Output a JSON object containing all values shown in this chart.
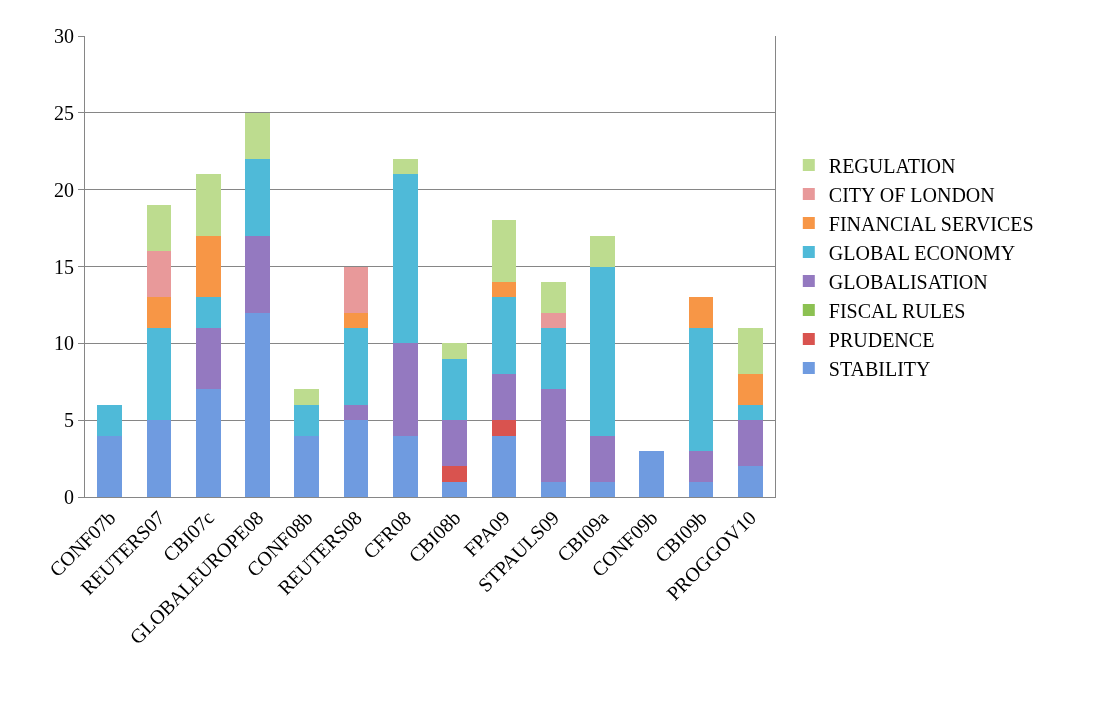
{
  "chart_data": {
    "type": "bar",
    "stacked": true,
    "categories": [
      "CONF07b",
      "REUTERS07",
      "CBI07c",
      "GLOBALEUROPE08",
      "CONF08b",
      "REUTERS08",
      "CFR08",
      "CBI08b",
      "FPA09",
      "STPAULS09",
      "CBI09a",
      "CONF09b",
      "CBI09b",
      "PROGGOV10"
    ],
    "series": [
      {
        "name": "STABILITY",
        "color": "#6f9be0",
        "values": [
          4,
          5,
          7,
          12,
          4,
          5,
          4,
          1,
          4,
          1,
          1,
          3,
          1,
          2
        ]
      },
      {
        "name": "PRUDENCE",
        "color": "#d9534f",
        "values": [
          0,
          0,
          0,
          0,
          0,
          0,
          0,
          1,
          1,
          0,
          0,
          0,
          0,
          0
        ]
      },
      {
        "name": "FISCAL RULES",
        "color": "#8cc152",
        "values": [
          0,
          0,
          0,
          0,
          0,
          0,
          0,
          0,
          0,
          0,
          0,
          0,
          0,
          0
        ]
      },
      {
        "name": "GLOBALISATION",
        "color": "#9479c0",
        "values": [
          0,
          0,
          4,
          5,
          0,
          1,
          6,
          3,
          3,
          6,
          3,
          0,
          2,
          3
        ]
      },
      {
        "name": "GLOBAL ECONOMY",
        "color": "#4fbad8",
        "values": [
          2,
          6,
          2,
          5,
          2,
          5,
          11,
          4,
          5,
          4,
          11,
          0,
          8,
          1
        ]
      },
      {
        "name": "FINANCIAL SERVICES",
        "color": "#f79646",
        "values": [
          0,
          2,
          4,
          0,
          0,
          1,
          0,
          0,
          1,
          0,
          0,
          0,
          2,
          2
        ]
      },
      {
        "name": "CITY OF LONDON",
        "color": "#e8999a",
        "values": [
          0,
          3,
          0,
          0,
          0,
          3,
          0,
          0,
          0,
          1,
          0,
          0,
          0,
          0
        ]
      },
      {
        "name": "REGULATION",
        "color": "#bddc8f",
        "values": [
          0,
          3,
          4,
          3,
          1,
          0,
          1,
          1,
          4,
          2,
          2,
          0,
          0,
          3
        ]
      }
    ],
    "ylim": [
      0,
      30
    ],
    "yticks": [
      0,
      5,
      10,
      15,
      20,
      25,
      30
    ],
    "grid": "y",
    "legend": "right"
  }
}
